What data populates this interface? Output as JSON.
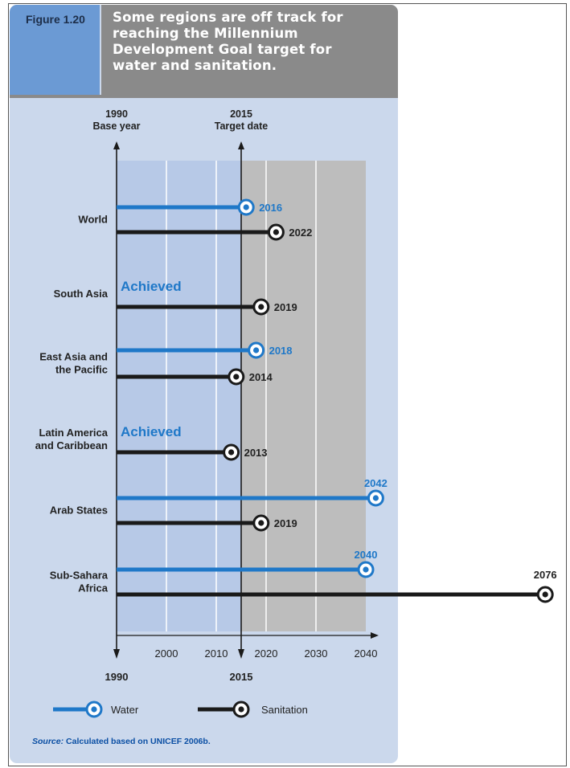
{
  "figure_label": "Figure 1.20",
  "title_lines": [
    "Some regions are off track for",
    "reaching the Millennium",
    "Development Goal target for",
    "water and sanitation."
  ],
  "legend": {
    "water": "Water",
    "sanitation": "Sanitation"
  },
  "source_label": "Source:",
  "source_text": "Calculated based on UNICEF 2006b.",
  "colors": {
    "water": "#1f78c8",
    "sanitation": "#1a1a1a",
    "blue_bg": "#b7c9e7",
    "grey_bg": "#bdbdbd",
    "panel": "#cbd8ec"
  },
  "chart_data": {
    "type": "bar",
    "top_markers": [
      {
        "year": 1990,
        "label1": "1990",
        "label2": "Base year"
      },
      {
        "year": 2015,
        "label1": "2015",
        "label2": "Target date"
      }
    ],
    "bottom_markers": [
      "1990",
      "2015"
    ],
    "x_ticks": [
      2000,
      2010,
      2020,
      2030,
      2040
    ],
    "x_range": [
      1990,
      2076
    ],
    "categories": [
      "World",
      "South Asia",
      "East Asia and the Pacific",
      "Latin America and Caribbean",
      "Arab States",
      "Sub-Sahara Africa"
    ],
    "category_lines": [
      [
        "World"
      ],
      [
        "South Asia"
      ],
      [
        "East Asia and",
        "the Pacific"
      ],
      [
        "Latin America",
        "and Caribbean"
      ],
      [
        "Arab States"
      ],
      [
        "Sub-Sahara",
        "Africa"
      ]
    ],
    "achieved_text": "Achieved",
    "series": [
      {
        "name": "Water",
        "values": [
          2016,
          null,
          2018,
          null,
          2042,
          2040
        ],
        "labels": [
          "2016",
          "Achieved",
          "2018",
          "Achieved",
          "2042",
          "2040"
        ]
      },
      {
        "name": "Sanitation",
        "values": [
          2022,
          2019,
          2014,
          2013,
          2019,
          2076
        ],
        "labels": [
          "2022",
          "2019",
          "2014",
          "2013",
          "2019",
          "2076"
        ]
      }
    ]
  }
}
